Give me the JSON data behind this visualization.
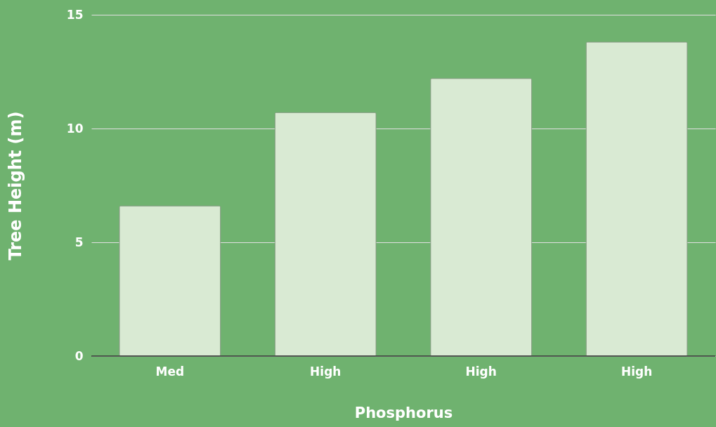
{
  "chart_data": {
    "type": "bar",
    "xlabel": "Phosphorus",
    "ylabel": "Tree Height (m)",
    "categories": [
      "Med",
      "High",
      "High",
      "High"
    ],
    "values": [
      6.6,
      10.7,
      12.2,
      13.8
    ],
    "color": "#d9ead3",
    "ylim": [
      0,
      15
    ],
    "yticks": [
      0,
      5,
      10,
      15
    ],
    "grid": "y"
  }
}
